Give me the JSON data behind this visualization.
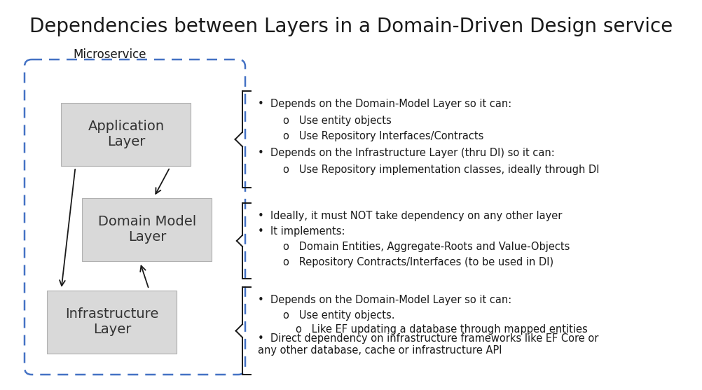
{
  "title": "Dependencies between Layers in a Domain-Driven Design service",
  "title_fontsize": 20,
  "bg_color": "#ffffff",
  "box_fill": "#d9d9d9",
  "box_edge": "#b0b0b0",
  "dashed_border_color": "#4472c4",
  "arrow_color": "#1a1a1a",
  "microservice_label": "Microservice",
  "layers": [
    "Application\nLayer",
    "Domain Model\nLayer",
    "Infrastructure\nLayer"
  ],
  "text_sections": [
    [
      {
        "bullet": true,
        "indent": 0,
        "text": "Depends on the Domain-Model Layer so it can:"
      },
      {
        "bullet": false,
        "indent": 1,
        "text": "Use entity objects"
      },
      {
        "bullet": false,
        "indent": 1,
        "text": "Use Repository Interfaces/Contracts"
      },
      {
        "bullet": true,
        "indent": 0,
        "text": "Depends on the Infrastructure Layer (thru DI) so it can:"
      },
      {
        "bullet": false,
        "indent": 1,
        "text": "Use Repository implementation classes, ideally through DI"
      }
    ],
    [
      {
        "bullet": true,
        "indent": 0,
        "text": "Ideally, it must NOT take dependency on any other layer"
      },
      {
        "bullet": true,
        "indent": 0,
        "text": "It implements:"
      },
      {
        "bullet": false,
        "indent": 1,
        "text": "Domain Entities, Aggregate-Roots and Value-Objects"
      },
      {
        "bullet": false,
        "indent": 1,
        "text": "Repository Contracts/Interfaces (to be used in DI)"
      }
    ],
    [
      {
        "bullet": true,
        "indent": 0,
        "text": "Depends on the Domain-Model Layer so it can:"
      },
      {
        "bullet": false,
        "indent": 1,
        "text": "Use entity objects."
      },
      {
        "bullet": false,
        "indent": 2,
        "text": "Like EF updating a database through mapped entities"
      },
      {
        "bullet": true,
        "indent": 0,
        "text": "Direct dependency on infrastructure frameworks like EF Core or\nany other database, cache or infrastructure API"
      }
    ]
  ]
}
